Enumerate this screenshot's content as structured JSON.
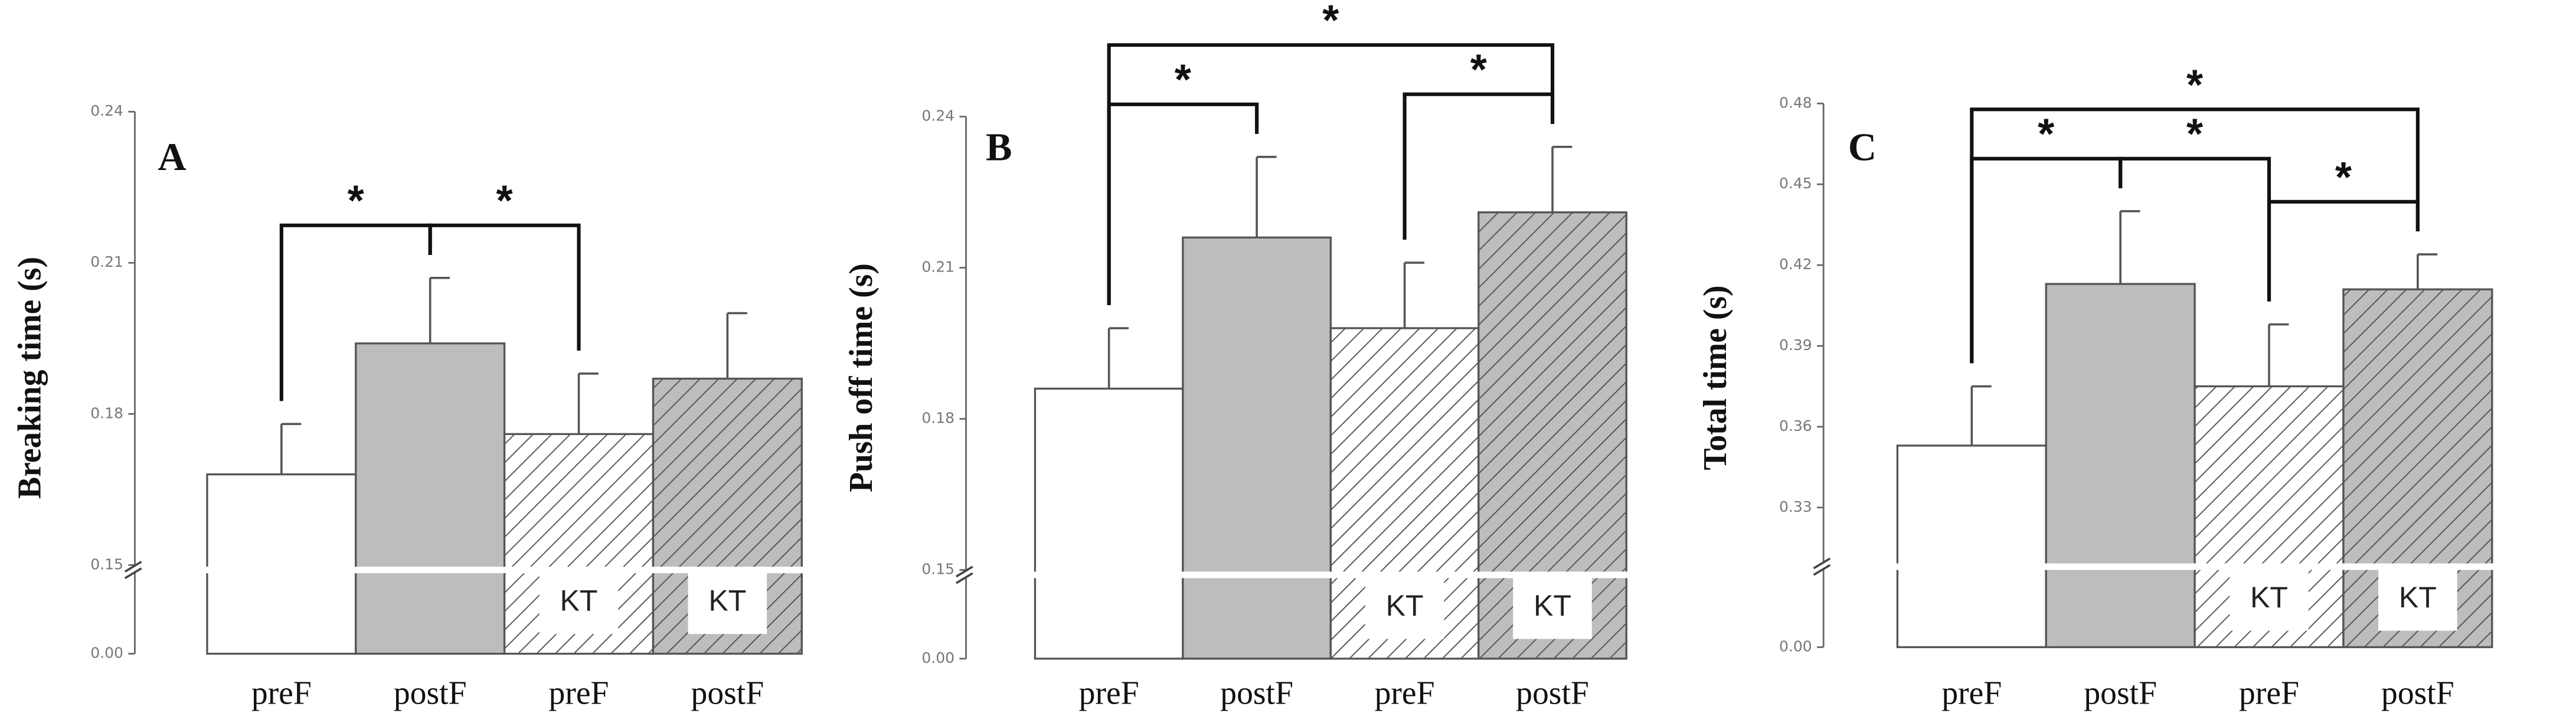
{
  "chart_data": [
    {
      "type": "bar",
      "panel_label": "A",
      "y_label": "Breaking time (s)",
      "categories": [
        "preF",
        "postF",
        "preF",
        "postF"
      ],
      "values": [
        0.168,
        0.194,
        0.176,
        0.187
      ],
      "errors": [
        0.01,
        0.013,
        0.012,
        0.013
      ],
      "colors": [
        "#ffffff",
        "#bdbdbd",
        "#ffffff",
        "#bdbdbd"
      ],
      "hatch": [
        false,
        false,
        true,
        true
      ],
      "inner_labels": [
        null,
        null,
        "KT",
        "KT"
      ],
      "ylim": [
        0,
        0.24
      ],
      "yticks": [
        {
          "value": 0,
          "label": "0.00"
        },
        0.15,
        0.18,
        0.21,
        0.24
      ],
      "axis_break": true,
      "significance": [
        {
          "bars": [
            0,
            1
          ],
          "label": "*"
        },
        {
          "bars": [
            1,
            2
          ],
          "label": "*"
        }
      ]
    },
    {
      "type": "bar",
      "panel_label": "B",
      "y_label": "Push off time (s)",
      "categories": [
        "preF",
        "postF",
        "preF",
        "postF"
      ],
      "values": [
        0.186,
        0.216,
        0.198,
        0.221
      ],
      "errors": [
        0.012,
        0.016,
        0.013,
        0.013
      ],
      "colors": [
        "#ffffff",
        "#bdbdbd",
        "#ffffff",
        "#bdbdbd"
      ],
      "hatch": [
        false,
        false,
        true,
        true
      ],
      "inner_labels": [
        null,
        null,
        "KT",
        "KT"
      ],
      "ylim": [
        0,
        0.24
      ],
      "yticks": [
        {
          "value": 0,
          "label": "0.00"
        },
        0.15,
        0.18,
        0.21,
        0.24
      ],
      "axis_break": true,
      "significance": [
        {
          "bars": [
            0,
            1
          ],
          "label": "*"
        },
        {
          "bars": [
            2,
            3
          ],
          "label": "*"
        },
        {
          "bars": [
            0,
            3
          ],
          "label": "*"
        }
      ]
    },
    {
      "type": "bar",
      "panel_label": "C",
      "y_label": "Total time (s)",
      "categories": [
        "preF",
        "postF",
        "preF",
        "postF"
      ],
      "values": [
        0.353,
        0.413,
        0.375,
        0.411
      ],
      "errors": [
        0.022,
        0.027,
        0.023,
        0.013
      ],
      "colors": [
        "#ffffff",
        "#bdbdbd",
        "#ffffff",
        "#bdbdbd"
      ],
      "hatch": [
        false,
        false,
        true,
        true
      ],
      "inner_labels": [
        null,
        null,
        "KT",
        "KT"
      ],
      "ylim": [
        0,
        0.48
      ],
      "yticks": [
        {
          "value": 0,
          "label": "0.00"
        },
        0.33,
        0.36,
        0.39,
        0.42,
        0.45,
        0.48
      ],
      "axis_break": true,
      "significance": [
        {
          "bars": [
            0,
            1
          ],
          "label": "*"
        },
        {
          "bars": [
            1,
            2
          ],
          "label": "*"
        },
        {
          "bars": [
            2,
            3
          ],
          "label": "*"
        },
        {
          "bars": [
            0,
            3
          ],
          "label": "*"
        }
      ]
    }
  ]
}
